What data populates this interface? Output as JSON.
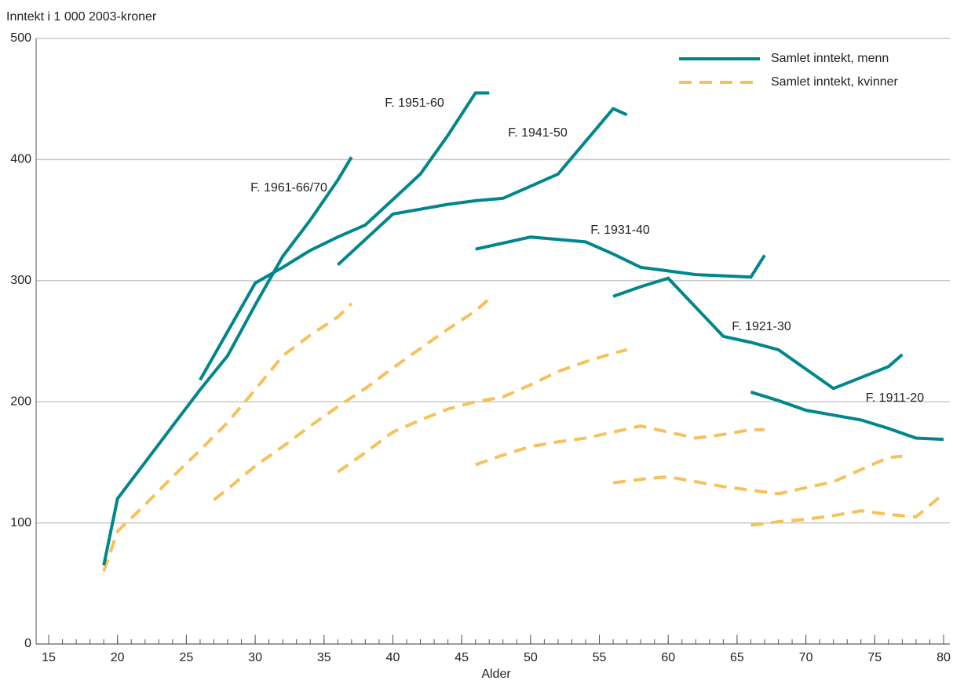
{
  "chart_data": {
    "type": "line",
    "ylabel": "Inntekt i 1 000 2003-kroner",
    "xlabel": "Alder",
    "xlim": [
      15,
      80
    ],
    "xticks": [
      15,
      20,
      25,
      30,
      35,
      40,
      45,
      50,
      55,
      60,
      65,
      70,
      75,
      80
    ],
    "ylim": [
      0,
      500
    ],
    "yticks": [
      0,
      100,
      200,
      300,
      400,
      500
    ],
    "grid": true,
    "legend": "upper right",
    "legend_entries": [
      {
        "name": "Samlet inntekt, menn",
        "color": "#00868b",
        "dash": false
      },
      {
        "name": "Samlet inntekt, kvinner",
        "color": "#f7c15a",
        "dash": true
      }
    ],
    "cohorts": [
      {
        "label": "F. 1961-66/70",
        "men": {
          "x": [
            19,
            20,
            22,
            24,
            26,
            28,
            30,
            32,
            34,
            36,
            37
          ],
          "values": [
            65,
            120,
            150,
            180,
            210,
            238,
            280,
            320,
            350,
            383,
            402
          ]
        },
        "women": {
          "x": [
            19,
            20,
            22,
            24,
            26,
            28,
            30,
            32,
            34,
            36,
            37
          ],
          "values": [
            60,
            93,
            115,
            138,
            160,
            183,
            210,
            238,
            255,
            270,
            281
          ]
        }
      },
      {
        "label": "F. 1951-60",
        "men": {
          "x": [
            26,
            28,
            30,
            32,
            34,
            36,
            38,
            40,
            42,
            44,
            46,
            47
          ],
          "values": [
            218,
            258,
            298,
            311,
            325,
            336,
            346,
            367,
            388,
            420,
            455,
            455
          ]
        },
        "women": {
          "x": [
            27,
            28,
            30,
            32,
            34,
            36,
            38,
            40,
            42,
            44,
            46,
            47
          ],
          "values": [
            119,
            128,
            147,
            163,
            180,
            196,
            211,
            228,
            244,
            260,
            275,
            285
          ]
        }
      },
      {
        "label": "F. 1941-50",
        "men": {
          "x": [
            36,
            38,
            40,
            42,
            44,
            46,
            48,
            50,
            52,
            54,
            56,
            57
          ],
          "values": [
            313,
            334,
            355,
            359,
            363,
            366,
            368,
            378,
            388,
            415,
            442,
            437
          ]
        },
        "women": {
          "x": [
            36,
            38,
            40,
            42,
            44,
            46,
            48,
            50,
            52,
            54,
            56,
            57
          ],
          "values": [
            142,
            158,
            175,
            185,
            194,
            200,
            204,
            214,
            225,
            233,
            240,
            243
          ]
        }
      },
      {
        "label": "F. 1931-40",
        "men": {
          "x": [
            46,
            48,
            50,
            52,
            54,
            56,
            58,
            60,
            62,
            64,
            66,
            67
          ],
          "values": [
            326,
            331,
            336,
            334,
            332,
            322,
            311,
            308,
            305,
            304,
            303,
            321
          ]
        },
        "women": {
          "x": [
            46,
            48,
            50,
            52,
            54,
            56,
            58,
            60,
            62,
            64,
            66,
            67
          ],
          "values": [
            148,
            156,
            163,
            167,
            170,
            175,
            180,
            175,
            170,
            173,
            177,
            177
          ]
        }
      },
      {
        "label": "F. 1921-30",
        "men": {
          "x": [
            56,
            58,
            60,
            62,
            64,
            66,
            68,
            70,
            72,
            74,
            76,
            77
          ],
          "values": [
            287,
            295,
            302,
            278,
            254,
            249,
            243,
            227,
            211,
            220,
            229,
            239
          ]
        },
        "women": {
          "x": [
            56,
            58,
            60,
            62,
            64,
            66,
            68,
            70,
            72,
            74,
            76,
            77
          ],
          "values": [
            133,
            136,
            138,
            134,
            130,
            127,
            124,
            129,
            134,
            144,
            154,
            155
          ]
        }
      },
      {
        "label": "F. 1911-20",
        "men": {
          "x": [
            66,
            68,
            70,
            72,
            74,
            76,
            78,
            80
          ],
          "values": [
            208,
            201,
            193,
            189,
            185,
            178,
            170,
            169
          ]
        },
        "women": {
          "x": [
            66,
            68,
            70,
            72,
            74,
            76,
            78,
            80
          ],
          "values": [
            98,
            101,
            103,
            106,
            110,
            107,
            105,
            124
          ]
        }
      }
    ]
  }
}
